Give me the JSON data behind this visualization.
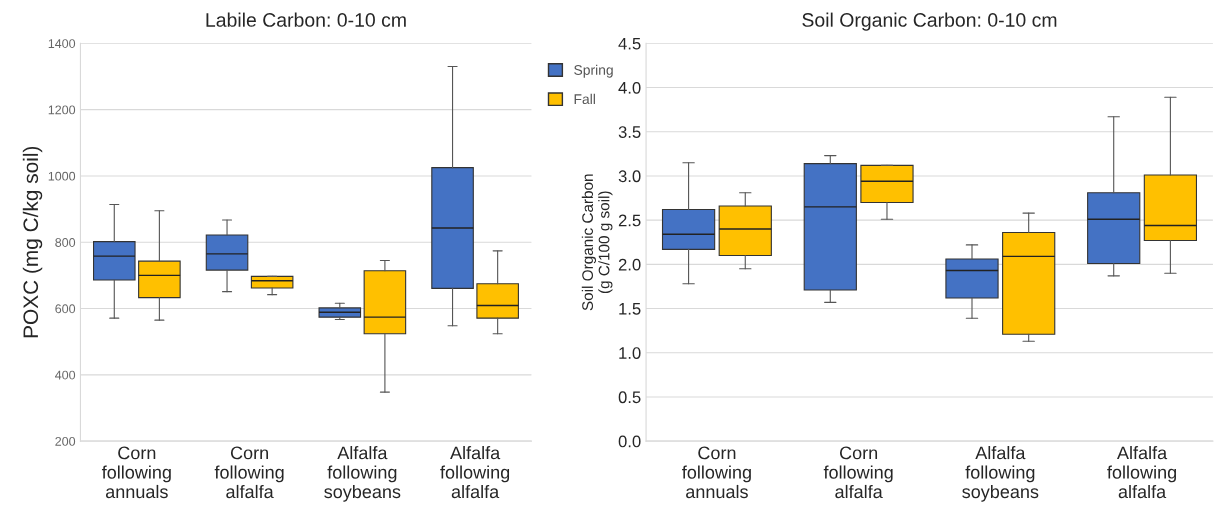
{
  "chart_data": [
    {
      "type": "box",
      "title": "Labile Carbon: 0-10 cm",
      "ylabel": "POXC (mg C/kg soil)",
      "categories": [
        "Corn following annuals",
        "Corn following alfalfa",
        "Alfalfa following soybeans",
        "Alfalfa following alfalfa"
      ],
      "ylim": [
        200,
        1400
      ],
      "yticks": [
        200,
        400,
        600,
        800,
        1000,
        1200,
        1400
      ],
      "grid": "y",
      "legend": "top right",
      "series": [
        {
          "name": "Spring",
          "color": "#4472c4",
          "boxes": [
            {
              "low": 571,
              "q1": 686,
              "median": 758,
              "q3": 802,
              "high": 914
            },
            {
              "low": 651,
              "q1": 716,
              "median": 765,
              "q3": 822,
              "high": 867
            },
            {
              "low": 567,
              "q1": 574,
              "median": 589,
              "q3": 602,
              "high": 616
            },
            {
              "low": 548,
              "q1": 661,
              "median": 843,
              "q3": 1025,
              "high": 1330
            }
          ]
        },
        {
          "name": "Fall",
          "color": "#ffc000",
          "boxes": [
            {
              "low": 565,
              "q1": 633,
              "median": 700,
              "q3": 743,
              "high": 895
            },
            {
              "low": 642,
              "q1": 662,
              "median": 684,
              "q3": 697,
              "high": 697
            },
            {
              "low": 348,
              "q1": 524,
              "median": 574,
              "q3": 714,
              "high": 745
            },
            {
              "low": 524,
              "q1": 571,
              "median": 609,
              "q3": 675,
              "high": 774
            }
          ]
        }
      ]
    },
    {
      "type": "box",
      "title": "Soil Organic Carbon: 0-10 cm",
      "ylabel": "Soil Organic Carbon\n(g C/100 g soil)",
      "categories": [
        "Corn following annuals",
        "Corn following alfalfa",
        "Alfalfa following soybeans",
        "Alfalfa following alfalfa"
      ],
      "ylim": [
        0,
        4.5
      ],
      "yticks": [
        {
          "value": 0,
          "label": "0.0"
        },
        0.5,
        {
          "value": 1,
          "label": "1.0"
        },
        1.5,
        {
          "value": 2,
          "label": "2.0"
        },
        2.5,
        {
          "value": 3,
          "label": "3.0"
        },
        3.5,
        {
          "value": 4,
          "label": "4.0"
        },
        4.5
      ],
      "grid": "y",
      "series": [
        {
          "color": "#4472c4",
          "boxes": [
            {
              "low": 1.78,
              "q1": 2.17,
              "median": 2.34,
              "q3": 2.62,
              "high": 3.15
            },
            {
              "low": 1.57,
              "q1": 1.71,
              "median": 2.65,
              "q3": 3.14,
              "high": 3.23
            },
            {
              "low": 1.39,
              "q1": 1.62,
              "median": 1.93,
              "q3": 2.06,
              "high": 2.22
            },
            {
              "low": 1.87,
              "q1": 2.01,
              "median": 2.51,
              "q3": 2.81,
              "high": 3.67
            }
          ]
        },
        {
          "color": "#ffc000",
          "boxes": [
            {
              "low": 1.95,
              "q1": 2.1,
              "median": 2.4,
              "q3": 2.66,
              "high": 2.81
            },
            {
              "low": 2.51,
              "q1": 2.7,
              "median": 2.94,
              "q3": 3.12,
              "high": 3.12
            },
            {
              "low": 1.13,
              "q1": 1.21,
              "median": 2.09,
              "q3": 2.36,
              "high": 2.58
            },
            {
              "low": 1.9,
              "q1": 2.27,
              "median": 2.44,
              "q3": 3.01,
              "high": 3.89
            }
          ]
        }
      ]
    }
  ]
}
